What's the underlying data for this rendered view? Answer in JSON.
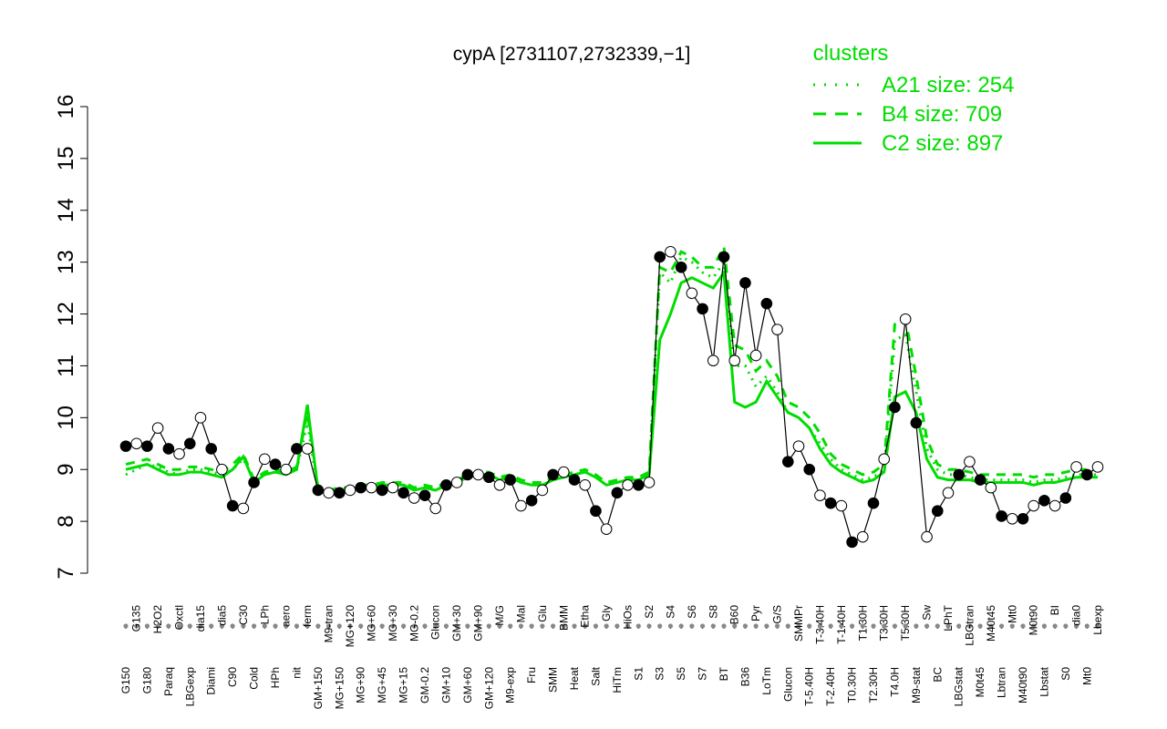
{
  "chart_data": {
    "type": "line",
    "title": "cypA [2731107,2732339,−1]",
    "ylim": [
      7,
      16
    ],
    "yticks": [
      "7",
      "8",
      "9",
      "10",
      "11",
      "12",
      "13",
      "14",
      "15",
      "16"
    ],
    "xtick_labels": [
      "G150",
      "G135",
      "G180",
      "H2O2",
      "Paraq",
      "Oxctl",
      "LBGexp",
      "dia15",
      "Diami",
      "dia5",
      "C90",
      "C30",
      "Cold",
      "LPh",
      "HPh",
      "aero",
      "nit",
      "ferm",
      "GM+150",
      "M9-tran",
      "MG+150",
      "MG+120",
      "MG+90",
      "MG+60",
      "MG+45",
      "MG+30",
      "MG+15",
      "MG-0.2",
      "GM-0.2",
      "Glucon",
      "GM+10",
      "GM+30",
      "GM+60",
      "GM+90",
      "GM+120",
      "M/G",
      "M9-exp",
      "Mal",
      "Fru",
      "Glu",
      "SMM",
      "BMM",
      "Heat",
      "Etha",
      "Salt",
      "Gly",
      "HiTm",
      "HiOs",
      "S1",
      "S2",
      "S3",
      "S4",
      "S5",
      "S6",
      "S7",
      "S8",
      "BT",
      "B60",
      "B36",
      "Pyr",
      "LoTm",
      "G/S",
      "Glucon",
      "SMMPr",
      "T-5.40H",
      "T-3.40H",
      "T-2.40H",
      "T-1.40H",
      "T0.30H",
      "T1.30H",
      "T2.30H",
      "T3.30H",
      "T4.0H",
      "T5.30H",
      "M9-stat",
      "Sw",
      "BC",
      "LPhT",
      "LBGstat",
      "LBGtran",
      "M0t45",
      "M40t45",
      "Lbtran",
      "Mt0",
      "M40t90",
      "M0t90",
      "Lbstat",
      "BI",
      "S0",
      "dia0",
      "Mt0",
      "Lbexp"
    ],
    "series": [
      {
        "name": "A21 size: 254",
        "style": "dotted",
        "color": "#00dd00",
        "values": [
          8.9,
          9.0,
          9.1,
          9.05,
          8.95,
          8.9,
          9.0,
          9.0,
          8.95,
          8.9,
          9.0,
          9.2,
          8.8,
          8.9,
          8.95,
          8.9,
          9.0,
          9.9,
          8.6,
          8.55,
          8.6,
          8.6,
          8.65,
          8.65,
          8.7,
          8.7,
          8.7,
          8.6,
          8.65,
          8.6,
          8.7,
          8.75,
          8.85,
          8.9,
          8.9,
          8.8,
          8.85,
          8.75,
          8.7,
          8.7,
          8.8,
          8.85,
          8.9,
          8.95,
          8.85,
          8.7,
          8.75,
          8.8,
          8.8,
          8.9,
          12.8,
          12.6,
          13.1,
          13.0,
          12.8,
          12.7,
          13.0,
          11.0,
          11.0,
          10.6,
          10.8,
          10.5,
          10.1,
          10.0,
          9.8,
          9.5,
          9.2,
          9.0,
          8.9,
          8.8,
          8.85,
          9.0,
          11.5,
          11.6,
          10.5,
          9.4,
          9.0,
          8.9,
          8.9,
          8.85,
          8.8,
          8.8,
          8.8,
          8.8,
          8.8,
          8.75,
          8.8,
          8.8,
          8.85,
          8.9,
          8.9,
          8.9
        ]
      },
      {
        "name": "B4 size: 709",
        "style": "dashed",
        "color": "#00dd00",
        "values": [
          9.1,
          9.15,
          9.2,
          9.1,
          9.0,
          9.0,
          9.05,
          9.05,
          9.0,
          8.95,
          9.1,
          9.3,
          8.8,
          8.95,
          9.0,
          8.95,
          9.05,
          10.1,
          8.65,
          8.6,
          8.65,
          8.65,
          8.7,
          8.7,
          8.75,
          8.75,
          8.75,
          8.65,
          8.7,
          8.65,
          8.75,
          8.8,
          8.9,
          8.95,
          8.95,
          8.85,
          8.9,
          8.8,
          8.75,
          8.75,
          8.85,
          8.9,
          8.95,
          9.0,
          8.9,
          8.75,
          8.8,
          8.85,
          8.85,
          8.95,
          12.9,
          12.8,
          13.2,
          13.1,
          12.9,
          12.9,
          13.3,
          11.4,
          11.3,
          10.9,
          11.1,
          10.8,
          10.3,
          10.2,
          10.0,
          9.7,
          9.3,
          9.1,
          9.0,
          8.9,
          8.95,
          9.1,
          11.8,
          11.9,
          10.8,
          9.6,
          9.1,
          9.0,
          9.0,
          8.95,
          8.9,
          8.9,
          8.9,
          8.9,
          8.9,
          8.85,
          8.9,
          8.9,
          8.95,
          9.0,
          9.0,
          9.0
        ]
      },
      {
        "name": "C2 size: 897",
        "style": "solid",
        "color": "#00dd00",
        "values": [
          9.0,
          9.05,
          9.1,
          9.0,
          8.9,
          8.9,
          8.95,
          8.95,
          8.9,
          8.85,
          9.0,
          9.25,
          8.75,
          8.9,
          8.95,
          8.9,
          9.0,
          10.25,
          8.6,
          8.55,
          8.6,
          8.6,
          8.65,
          8.65,
          8.7,
          8.7,
          8.7,
          8.6,
          8.65,
          8.6,
          8.7,
          8.75,
          8.85,
          8.9,
          8.9,
          8.8,
          8.85,
          8.75,
          8.7,
          8.7,
          8.8,
          8.85,
          8.9,
          8.95,
          8.85,
          8.7,
          8.75,
          8.8,
          8.8,
          8.9,
          11.5,
          12.0,
          12.6,
          12.7,
          12.6,
          12.5,
          12.8,
          10.3,
          10.2,
          10.3,
          10.7,
          10.4,
          10.1,
          10.0,
          9.8,
          9.4,
          9.1,
          8.95,
          8.85,
          8.75,
          8.8,
          8.95,
          10.4,
          10.5,
          10.1,
          9.2,
          8.85,
          8.8,
          8.8,
          8.8,
          8.75,
          8.75,
          8.75,
          8.75,
          8.75,
          8.7,
          8.75,
          8.75,
          8.8,
          8.85,
          8.85,
          8.85
        ]
      },
      {
        "name": "cypA",
        "style": "points",
        "color": "#000000",
        "values": [
          9.45,
          9.5,
          9.45,
          9.8,
          9.4,
          9.3,
          9.5,
          10.0,
          9.4,
          9.0,
          8.3,
          8.25,
          8.75,
          9.2,
          9.1,
          9.0,
          9.4,
          9.4,
          8.6,
          8.55,
          8.55,
          8.6,
          8.65,
          8.65,
          8.6,
          8.65,
          8.55,
          8.45,
          8.5,
          8.25,
          8.7,
          8.75,
          8.9,
          8.9,
          8.85,
          8.7,
          8.8,
          8.3,
          8.4,
          8.6,
          8.9,
          8.95,
          8.8,
          8.7,
          8.2,
          7.85,
          8.55,
          8.7,
          8.7,
          8.75,
          13.1,
          13.2,
          12.9,
          12.4,
          12.1,
          11.1,
          13.1,
          11.1,
          12.6,
          11.2,
          12.2,
          11.7,
          9.15,
          9.45,
          9.0,
          8.5,
          8.35,
          8.3,
          7.6,
          7.7,
          8.35,
          9.2,
          10.2,
          11.9,
          9.9,
          7.7,
          8.2,
          8.55,
          8.9,
          9.15,
          8.8,
          8.65,
          8.1,
          8.05,
          8.05,
          8.3,
          8.4,
          8.3,
          8.45,
          9.05,
          8.9,
          9.05
        ]
      }
    ]
  },
  "legend": {
    "title": "clusters",
    "items": [
      {
        "label": "A21 size: 254",
        "style": "dotted"
      },
      {
        "label": "B4 size: 709",
        "style": "dashed"
      },
      {
        "label": "C2 size: 897",
        "style": "solid"
      }
    ],
    "color": "#00dd00"
  }
}
